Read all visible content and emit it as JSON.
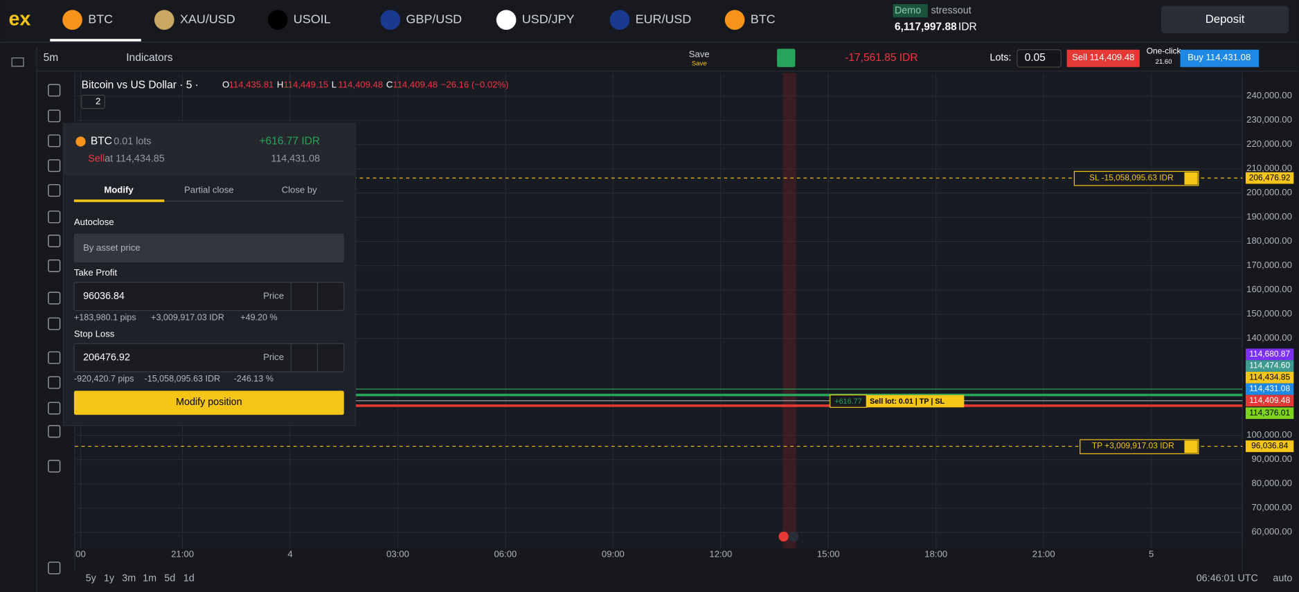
{
  "header": {
    "logo": "ex",
    "tabs": [
      "BTC",
      "XAU/USD",
      "USOIL",
      "GBP/USD",
      "USD/JPY",
      "EUR/USD",
      "BTC"
    ],
    "account_type": "Demo",
    "username": "stressout",
    "balance": "6,117,997.88",
    "currency": "IDR",
    "deposit": "Deposit"
  },
  "toolbar": {
    "timeframe": "5m",
    "indicators": "Indicators",
    "save": "Save",
    "save_sub": "Save",
    "pnl": "-17,561.85 IDR",
    "lots_label": "Lots:",
    "lots": "0.05",
    "sell": "Sell 114,409.48",
    "one_click": "One-click",
    "spread": "21.60",
    "buy": "Buy 114,431.08"
  },
  "chart": {
    "title": "Bitcoin vs US Dollar · 5 ·",
    "ohlc": [
      [
        "O",
        "114,435.81"
      ],
      [
        "H",
        "114,449.15"
      ],
      [
        "L",
        "114,409.48"
      ],
      [
        "C",
        "114,409.48"
      ]
    ],
    "change": "−26.16 (−0.02%)",
    "indicator_count": "2",
    "price_axis": [
      "240,000.00",
      "230,000.00",
      "220,000.00",
      "210,000.00",
      "200,000.00",
      "190,000.00",
      "180,000.00",
      "170,000.00",
      "160,000.00",
      "150,000.00",
      "140,000.00",
      "100,000.00",
      "90,000.00",
      "80,000.00",
      "70,000.00",
      "60,000.00"
    ],
    "time_axis": [
      "00",
      "21:00",
      "4",
      "03:00",
      "06:00",
      "09:00",
      "12:00",
      "15:00",
      "18:00",
      "21:00",
      "5"
    ],
    "price_tags": [
      {
        "label": "206,476.92",
        "color": "#f5c518"
      },
      {
        "label": "114,680.87",
        "color": "#7b2ff7"
      },
      {
        "label": "114,474.60",
        "color": "#3d9a8f"
      },
      {
        "label": "114,434.85",
        "color": "#f5c518"
      },
      {
        "label": "114,431.08",
        "color": "#1e88e5"
      },
      {
        "label": "114,409.48",
        "color": "#e53935"
      },
      {
        "label": "114,376.01",
        "color": "#7ed321"
      },
      {
        "label": "96,036.84",
        "color": "#f5c518"
      }
    ],
    "sl_line": "SL -15,058,095.63 IDR",
    "tp_line": "TP +3,009,917.03 IDR",
    "position_pnl": "+616.77",
    "position_label": "Sell lot: 0.01 | TP | SL",
    "ranges": [
      "5y",
      "1y",
      "3m",
      "1m",
      "5d",
      "1d"
    ],
    "clock": "06:46:01 UTC",
    "scale_mode": "auto"
  },
  "panel": {
    "symbol": "BTC",
    "lots": "0.01 lots",
    "pnl": "+616.77 IDR",
    "side": "Sell",
    "open_price": "at 114,434.85",
    "current_price": "114,431.08",
    "tabs": [
      "Modify",
      "Partial close",
      "Close by"
    ],
    "autoclose": "Autoclose",
    "autoclose_mode": "By asset price",
    "take_profit": {
      "label": "Take Profit",
      "value": "96036.84",
      "unit": "Price",
      "stats": [
        "+183,980.1 pips",
        "+3,009,917.03 IDR",
        "+49.20 %"
      ]
    },
    "stop_loss": {
      "label": "Stop Loss",
      "value": "206476.92",
      "unit": "Price",
      "stats": [
        "-920,420.7 pips",
        "-15,058,095.63 IDR",
        "-246.13 %"
      ]
    },
    "submit": "Modify position"
  }
}
